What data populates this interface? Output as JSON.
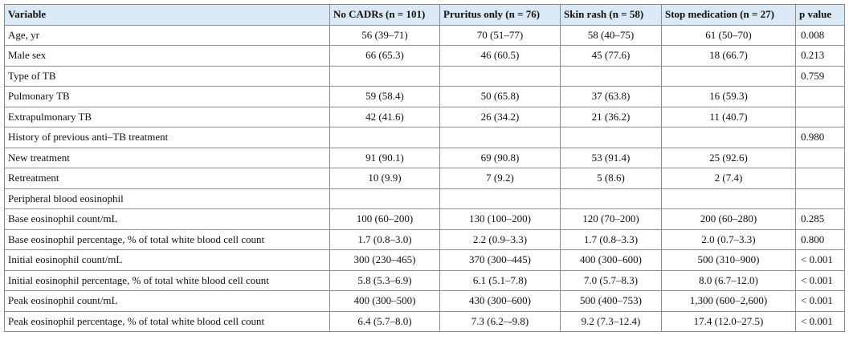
{
  "table": {
    "header": [
      "Variable",
      "No CADRs (n = 101)",
      "Pruritus only (n = 76)",
      "Skin rash (n = 58)",
      "Stop medication (n = 27)",
      "p value"
    ],
    "rows": [
      [
        "Age, yr",
        "56 (39–71)",
        "70 (51–77)",
        "58 (40–75)",
        "61 (50–70)",
        "0.008"
      ],
      [
        "Male sex",
        "66 (65.3)",
        "46 (60.5)",
        "45 (77.6)",
        "18 (66.7)",
        "0.213"
      ],
      [
        "Type of TB",
        null,
        null,
        null,
        null,
        "0.759"
      ],
      [
        "Pulmonary TB",
        "59 (58.4)",
        "50 (65.8)",
        "37 (63.8)",
        "16 (59.3)",
        null
      ],
      [
        "Extrapulmonary TB",
        "42 (41.6)",
        "26 (34.2)",
        "21 (36.2)",
        "11 (40.7)",
        null
      ],
      [
        "History of previous anti–TB treatment",
        null,
        null,
        null,
        null,
        "0.980"
      ],
      [
        "New treatment",
        "91 (90.1)",
        "69 (90.8)",
        "53 (91.4)",
        "25 (92.6)",
        null
      ],
      [
        "Retreatment",
        "10 (9.9)",
        "7 (9.2)",
        "5 (8.6)",
        "2 (7.4)",
        null
      ],
      [
        "Peripheral blood eosinophil",
        null,
        null,
        null,
        null,
        null
      ],
      [
        "Base eosinophil count/mL",
        "100 (60–200)",
        "130 (100–200)",
        "120 (70–200)",
        "200 (60–280)",
        "0.285"
      ],
      [
        "Base eosinophil percentage, % of total white blood cell count",
        "1.7 (0.8–3.0)",
        "2.2 (0.9–3.3)",
        "1.7 (0.8–3.3)",
        "2.0 (0.7–3.3)",
        "0.800"
      ],
      [
        "Initial eosinophil count/mL",
        "300 (230–465)",
        "370 (300–445)",
        "400 (300–600)",
        "500 (310–900)",
        "< 0.001"
      ],
      [
        "Initial eosinophil percentage, % of total white blood cell count",
        "5.8 (5.3–6.9)",
        "6.1 (5.1–7.8)",
        "7.0 (5.7–8.3)",
        "8.0 (6.7–12.0)",
        "< 0.001"
      ],
      [
        "Peak eosinophil count/mL",
        "400 (300–500)",
        "430 (300–600)",
        "500 (400–753)",
        "1,300 (600–2,600)",
        "< 0.001"
      ],
      [
        "Peak eosinophil percentage, % of total white blood cell count",
        "6.4 (5.7–8.0)",
        "7.3 (6.2–-9.8)",
        "9.2 (7.3–12.4)",
        "17.4 (12.0–27.5)",
        "< 0.001"
      ]
    ]
  }
}
